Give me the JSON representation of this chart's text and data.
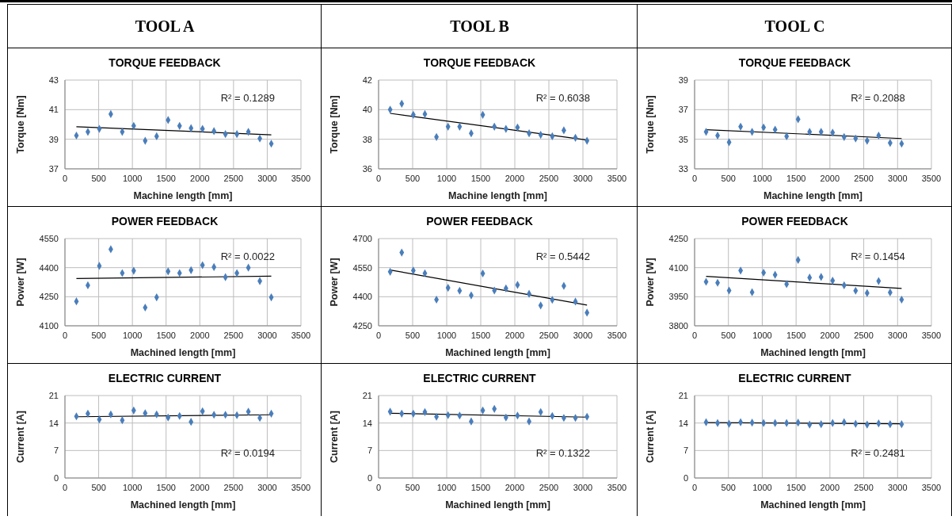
{
  "chart_data": [
    {
      "type": "scatter",
      "title": "TOOL A",
      "subtitle": "TORQUE FEEDBACK",
      "xlabel": "Machine length [mm]",
      "ylabel": "Torque [Nm]",
      "xlim": [
        0,
        3500
      ],
      "xticks": [
        0,
        500,
        1000,
        1500,
        2000,
        2500,
        3000,
        3500
      ],
      "ylim": [
        37,
        43
      ],
      "yticks": [
        37,
        39,
        41,
        43
      ],
      "grid": true,
      "series": [
        {
          "type": "scatter",
          "marker": "diamond",
          "color": "#4a7ebb",
          "x": [
            170,
            340,
            510,
            680,
            850,
            1020,
            1190,
            1360,
            1530,
            1700,
            1870,
            2040,
            2210,
            2380,
            2550,
            2720,
            2890,
            3060
          ],
          "values": [
            39.25,
            39.5,
            39.7,
            40.7,
            39.5,
            39.9,
            38.9,
            39.2,
            40.3,
            39.9,
            39.75,
            39.7,
            39.55,
            39.35,
            39.35,
            39.5,
            39.05,
            38.7
          ]
        },
        {
          "type": "line",
          "color": "#000000",
          "x": [
            170,
            3060
          ],
          "values": [
            39.85,
            39.3
          ]
        }
      ],
      "annotations": [
        "R² = 0.1289"
      ]
    },
    {
      "type": "scatter",
      "title": "TOOL B",
      "subtitle": "TORQUE FEEDBACK",
      "xlabel": "Machine length [mm]",
      "ylabel": "Torque [Nm]",
      "xlim": [
        0,
        3500
      ],
      "xticks": [
        0,
        500,
        1000,
        1500,
        2000,
        2500,
        3000,
        3500
      ],
      "ylim": [
        36,
        42
      ],
      "yticks": [
        36,
        38,
        40,
        42
      ],
      "grid": true,
      "series": [
        {
          "type": "scatter",
          "marker": "diamond",
          "color": "#4a7ebb",
          "x": [
            170,
            340,
            510,
            680,
            850,
            1020,
            1190,
            1360,
            1530,
            1700,
            1870,
            2040,
            2210,
            2380,
            2550,
            2720,
            2890,
            3060
          ],
          "values": [
            40.0,
            40.4,
            39.65,
            39.7,
            38.15,
            38.85,
            38.85,
            38.4,
            39.65,
            38.85,
            38.7,
            38.8,
            38.4,
            38.3,
            38.2,
            38.6,
            38.1,
            37.9
          ]
        },
        {
          "type": "line",
          "color": "#000000",
          "x": [
            170,
            3060
          ],
          "values": [
            39.75,
            37.95
          ]
        }
      ],
      "annotations": [
        "R² = 0.6038"
      ]
    },
    {
      "type": "scatter",
      "title": "TOOL C",
      "subtitle": "TORQUE FEEDBACK",
      "xlabel": "Machine length [mm]",
      "ylabel": "Torque [Nm]",
      "xlim": [
        0,
        3500
      ],
      "xticks": [
        0,
        500,
        1000,
        1500,
        2000,
        2500,
        3000,
        3500
      ],
      "ylim": [
        33,
        39
      ],
      "yticks": [
        33,
        35,
        37,
        39
      ],
      "grid": true,
      "series": [
        {
          "type": "scatter",
          "marker": "diamond",
          "color": "#4a7ebb",
          "x": [
            170,
            340,
            510,
            680,
            850,
            1020,
            1190,
            1360,
            1530,
            1700,
            1870,
            2040,
            2210,
            2380,
            2550,
            2720,
            2890,
            3060
          ],
          "values": [
            35.5,
            35.25,
            34.8,
            35.85,
            35.5,
            35.8,
            35.65,
            35.2,
            36.35,
            35.5,
            35.5,
            35.45,
            35.15,
            35.05,
            34.9,
            35.25,
            34.75,
            34.7
          ]
        },
        {
          "type": "line",
          "color": "#000000",
          "x": [
            170,
            3060
          ],
          "values": [
            35.65,
            35.05
          ]
        }
      ],
      "annotations": [
        "R² = 0.2088"
      ]
    },
    {
      "type": "scatter",
      "title": "POWER FEEDBACK",
      "xlabel": "Machined length [mm]",
      "ylabel": "Power [W]",
      "xlim": [
        0,
        3500
      ],
      "xticks": [
        0,
        500,
        1000,
        1500,
        2000,
        2500,
        3000,
        3500
      ],
      "ylim": [
        4100,
        4550
      ],
      "yticks": [
        4100,
        4250,
        4400,
        4550
      ],
      "grid": true,
      "series": [
        {
          "type": "scatter",
          "marker": "diamond",
          "color": "#4a7ebb",
          "x": [
            170,
            340,
            510,
            680,
            850,
            1020,
            1190,
            1360,
            1530,
            1700,
            1870,
            2040,
            2210,
            2380,
            2550,
            2720,
            2890,
            3060
          ],
          "values": [
            4226,
            4309,
            4409,
            4495,
            4372,
            4384,
            4194,
            4247,
            4381,
            4372,
            4387,
            4413,
            4403,
            4351,
            4372,
            4400,
            4331,
            4247
          ]
        },
        {
          "type": "line",
          "color": "#000000",
          "x": [
            170,
            3060
          ],
          "values": [
            4344,
            4356
          ]
        }
      ],
      "annotations": [
        "R² = 0.0022"
      ]
    },
    {
      "type": "scatter",
      "title": "POWER FEEDBACK",
      "xlabel": "Machined length [mm]",
      "ylabel": "Power [W]",
      "xlim": [
        0,
        3500
      ],
      "xticks": [
        0,
        500,
        1000,
        1500,
        2000,
        2500,
        3000,
        3500
      ],
      "ylim": [
        4250,
        4700
      ],
      "yticks": [
        4250,
        4400,
        4550,
        4700
      ],
      "grid": true,
      "series": [
        {
          "type": "scatter",
          "marker": "diamond",
          "color": "#4a7ebb",
          "x": [
            170,
            340,
            510,
            680,
            850,
            1020,
            1190,
            1360,
            1530,
            1700,
            1870,
            2040,
            2210,
            2380,
            2550,
            2720,
            2890,
            3060
          ],
          "values": [
            4529,
            4628,
            4535,
            4521,
            4385,
            4446,
            4431,
            4407,
            4520,
            4432,
            4443,
            4461,
            4415,
            4355,
            4384,
            4456,
            4375,
            4318
          ]
        },
        {
          "type": "line",
          "color": "#000000",
          "x": [
            170,
            3060
          ],
          "values": [
            4538,
            4357
          ]
        }
      ],
      "annotations": [
        "R² = 0.5442"
      ]
    },
    {
      "type": "scatter",
      "title": "POWER FEEDBACK",
      "xlabel": "Machined length [mm]",
      "ylabel": "Power [W]",
      "xlim": [
        0,
        3500
      ],
      "xticks": [
        0,
        500,
        1000,
        1500,
        2000,
        2500,
        3000,
        3500
      ],
      "ylim": [
        3800,
        4250
      ],
      "yticks": [
        3800,
        3950,
        4100,
        4250
      ],
      "grid": true,
      "series": [
        {
          "type": "scatter",
          "marker": "diamond",
          "color": "#4a7ebb",
          "x": [
            170,
            340,
            510,
            680,
            850,
            1020,
            1190,
            1360,
            1530,
            1700,
            1870,
            2040,
            2210,
            2380,
            2550,
            2720,
            2890,
            3060
          ],
          "values": [
            4027,
            4022,
            3982,
            4085,
            3973,
            4074,
            4063,
            4015,
            4140,
            4049,
            4052,
            4033,
            4009,
            3981,
            3969,
            4031,
            3972,
            3935
          ]
        },
        {
          "type": "line",
          "color": "#000000",
          "x": [
            170,
            3060
          ],
          "values": [
            4055,
            3993
          ]
        }
      ],
      "annotations": [
        "R² = 0.1454"
      ]
    },
    {
      "type": "scatter",
      "title": "ELECTRIC CURRENT",
      "xlabel": "Machined length [mm]",
      "ylabel": "Current [A]",
      "xlim": [
        0,
        3500
      ],
      "xticks": [
        0,
        500,
        1000,
        1500,
        2000,
        2500,
        3000,
        3500
      ],
      "ylim": [
        0,
        21
      ],
      "yticks": [
        0,
        7,
        14,
        21
      ],
      "grid": true,
      "series": [
        {
          "type": "scatter",
          "marker": "diamond",
          "color": "#4a7ebb",
          "x": [
            170,
            340,
            510,
            680,
            850,
            1020,
            1190,
            1360,
            1530,
            1700,
            1870,
            2040,
            2210,
            2380,
            2550,
            2720,
            2890,
            3060
          ],
          "values": [
            15.7,
            16.4,
            14.9,
            16.2,
            14.7,
            17.2,
            16.5,
            16.2,
            15.4,
            15.8,
            14.3,
            17.0,
            16.1,
            16.1,
            16.0,
            16.9,
            15.3,
            16.4
          ]
        },
        {
          "type": "line",
          "color": "#000000",
          "x": [
            170,
            3060
          ],
          "values": [
            15.6,
            16.1
          ]
        }
      ],
      "annotations": [
        "R² = 0.0194"
      ]
    },
    {
      "type": "scatter",
      "title": "ELECTRIC CURRENT",
      "xlabel": "Machined length [mm]",
      "ylabel": "Current [A]",
      "xlim": [
        0,
        3500
      ],
      "xticks": [
        0,
        500,
        1000,
        1500,
        2000,
        2500,
        3000,
        3500
      ],
      "ylim": [
        0,
        21
      ],
      "yticks": [
        0,
        7,
        14,
        21
      ],
      "grid": true,
      "series": [
        {
          "type": "scatter",
          "marker": "diamond",
          "color": "#4a7ebb",
          "x": [
            170,
            340,
            510,
            680,
            850,
            1020,
            1190,
            1360,
            1530,
            1700,
            1870,
            2040,
            2210,
            2380,
            2550,
            2720,
            2890,
            3060
          ],
          "values": [
            16.9,
            16.4,
            16.4,
            16.8,
            15.6,
            16.0,
            15.9,
            14.4,
            17.2,
            17.6,
            15.4,
            15.9,
            14.4,
            16.8,
            15.8,
            15.3,
            15.3,
            15.6
          ]
        },
        {
          "type": "line",
          "color": "#000000",
          "x": [
            170,
            3060
          ],
          "values": [
            16.5,
            15.5
          ]
        }
      ],
      "annotations": [
        "R² = 0.1322"
      ]
    },
    {
      "type": "scatter",
      "title": "ELECTRIC CURRENT",
      "xlabel": "Machined length [mm]",
      "ylabel": "Current [A]",
      "xlim": [
        0,
        3500
      ],
      "xticks": [
        0,
        500,
        1000,
        1500,
        2000,
        2500,
        3000,
        3500
      ],
      "ylim": [
        0,
        21
      ],
      "yticks": [
        0,
        7,
        14,
        21
      ],
      "grid": true,
      "series": [
        {
          "type": "scatter",
          "marker": "diamond",
          "color": "#4a7ebb",
          "x": [
            170,
            340,
            510,
            680,
            850,
            1020,
            1190,
            1360,
            1530,
            1700,
            1870,
            2040,
            2210,
            2380,
            2550,
            2720,
            2890,
            3060
          ],
          "values": [
            14.2,
            14.0,
            13.8,
            14.2,
            14.1,
            14.0,
            14.0,
            14.0,
            14.1,
            13.6,
            13.7,
            14.0,
            14.2,
            13.8,
            13.6,
            13.9,
            13.7,
            13.7
          ]
        },
        {
          "type": "line",
          "color": "#000000",
          "x": [
            170,
            3060
          ],
          "values": [
            14.1,
            13.8
          ]
        }
      ],
      "annotations": [
        "R² = 0.2481"
      ]
    }
  ]
}
